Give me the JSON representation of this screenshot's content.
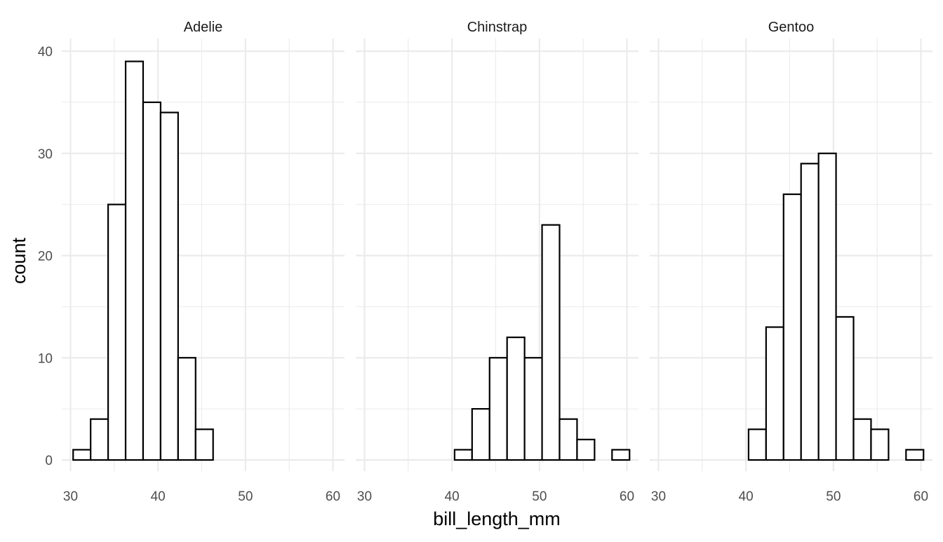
{
  "chart_data": {
    "type": "bar",
    "subtype": "faceted-histogram",
    "xlabel": "bill_length_mm",
    "ylabel": "count",
    "xlim": [
      30,
      60
    ],
    "ylim": [
      0,
      40
    ],
    "x_ticks": [
      30,
      40,
      50,
      60
    ],
    "y_ticks": [
      0,
      10,
      20,
      30,
      40
    ],
    "grid": true,
    "bar_fill": "#ffffff",
    "bar_outline": "#000000",
    "bin_edges": [
      30.3,
      32.3,
      34.3,
      36.3,
      38.3,
      40.3,
      42.3,
      44.3,
      46.3,
      48.3,
      50.3,
      52.3,
      54.3,
      56.3,
      58.3,
      60.3
    ],
    "facets": [
      {
        "name": "Adelie",
        "counts": [
          1,
          4,
          25,
          39,
          35,
          34,
          10,
          3,
          0,
          0,
          0,
          0,
          0,
          0,
          0
        ]
      },
      {
        "name": "Chinstrap",
        "counts": [
          0,
          0,
          0,
          0,
          0,
          1,
          5,
          10,
          12,
          10,
          23,
          4,
          2,
          0,
          1
        ]
      },
      {
        "name": "Gentoo",
        "counts": [
          0,
          0,
          0,
          0,
          0,
          3,
          13,
          26,
          29,
          30,
          14,
          4,
          3,
          0,
          1
        ]
      }
    ]
  }
}
